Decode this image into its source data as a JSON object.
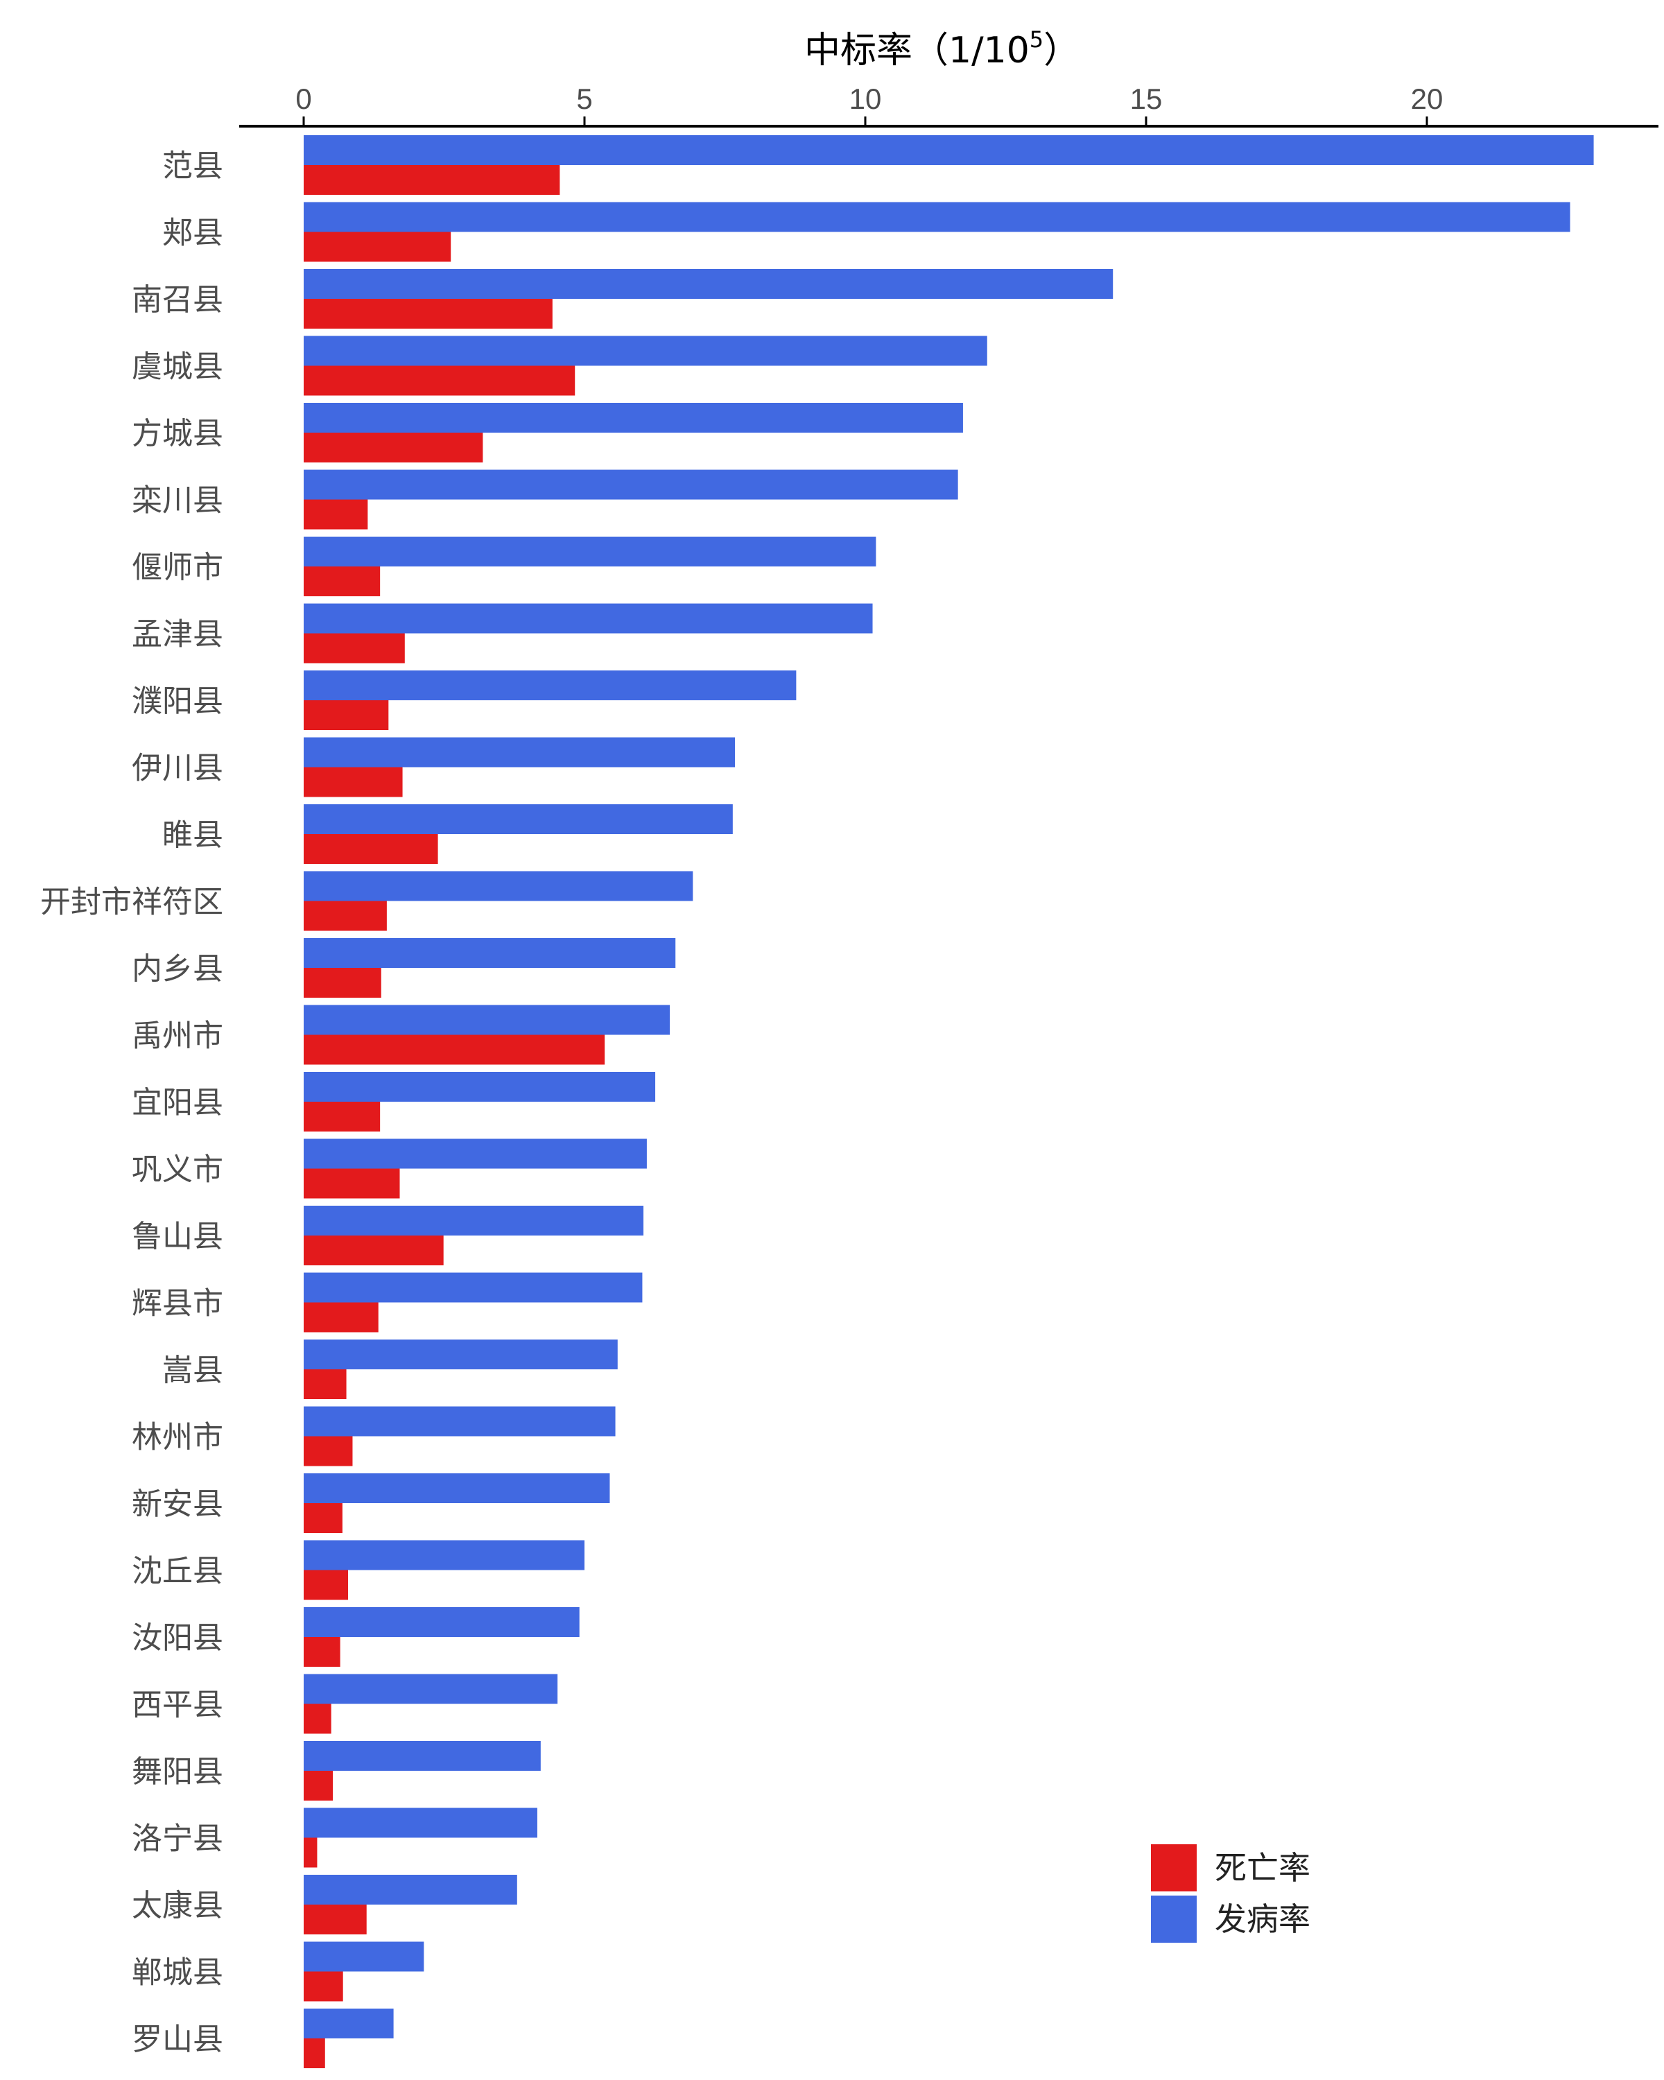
{
  "chart_data": {
    "type": "bar",
    "orientation": "horizontal",
    "xlabel": "中标率（1/10",
    "xlabel_sup": "5",
    "xlabel_suffix": "）",
    "xlim": [
      0,
      23.5
    ],
    "xticks": [
      0,
      5,
      10,
      15,
      20
    ],
    "xaxis_position": "top",
    "grid": false,
    "legend_position": "bottom-right",
    "categories": [
      "范县",
      "郏县",
      "南召县",
      "虞城县",
      "方城县",
      "栾川县",
      "偃师市",
      "孟津县",
      "濮阳县",
      "伊川县",
      "睢县",
      "开封市祥符区",
      "内乡县",
      "禹州市",
      "宜阳县",
      "巩义市",
      "鲁山县",
      "辉县市",
      "嵩县",
      "林州市",
      "新安县",
      "沈丘县",
      "汝阳县",
      "西平县",
      "舞阳县",
      "洛宁县",
      "太康县",
      "郸城县",
      "罗山县"
    ],
    "series": [
      {
        "name": "发病率",
        "color": "#4169e1",
        "values": [
          22.97,
          22.55,
          14.41,
          12.17,
          11.74,
          11.65,
          10.19,
          10.13,
          8.77,
          7.68,
          7.64,
          6.93,
          6.62,
          6.52,
          6.26,
          6.11,
          6.05,
          6.03,
          5.59,
          5.55,
          5.45,
          5.0,
          4.91,
          4.52,
          4.22,
          4.16,
          3.8,
          2.14,
          1.6
        ]
      },
      {
        "name": "死亡率",
        "color": "#e31a1c",
        "values": [
          4.56,
          2.62,
          4.43,
          4.83,
          3.19,
          1.14,
          1.36,
          1.8,
          1.51,
          1.76,
          2.39,
          1.48,
          1.38,
          5.36,
          1.36,
          1.71,
          2.49,
          1.33,
          0.76,
          0.87,
          0.69,
          0.79,
          0.65,
          0.49,
          0.52,
          0.24,
          1.12,
          0.7,
          0.38
        ]
      }
    ],
    "legend": [
      {
        "name": "死亡率",
        "color": "#e31a1c"
      },
      {
        "name": "发病率",
        "color": "#4169e1"
      }
    ]
  }
}
